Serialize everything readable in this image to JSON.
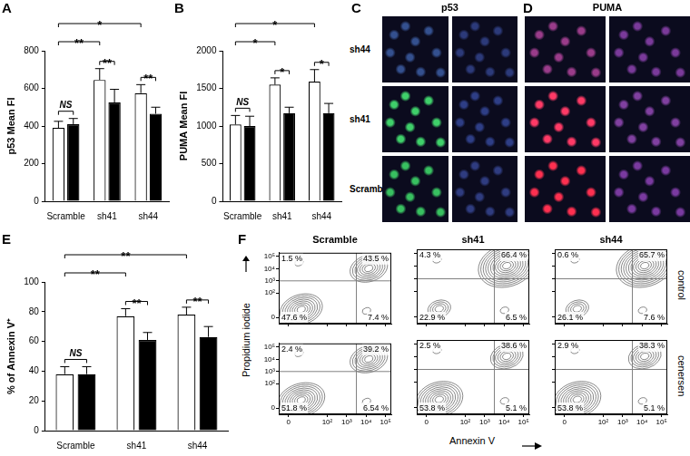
{
  "chart_data": [
    {
      "title": "A",
      "type": "bar",
      "ylabel": "p53 Mean FI",
      "categories": [
        "Scramble",
        "sh41",
        "sh44"
      ],
      "series": [
        {
          "color": "#ffffff",
          "values": [
            390,
            645,
            575
          ],
          "errors": [
            35,
            60,
            45
          ]
        },
        {
          "color": "#000000",
          "values": [
            410,
            525,
            465
          ],
          "errors": [
            30,
            70,
            35
          ]
        }
      ],
      "ylim": [
        0,
        800
      ],
      "yticks": [
        0,
        200,
        400,
        600,
        800
      ],
      "grid": false,
      "significance": [
        {
          "from": "Scramble",
          "to": "sh41",
          "label": "**"
        },
        {
          "from": "Scramble",
          "to": "sh44",
          "label": "*"
        },
        {
          "within": "Scramble",
          "label": "NS"
        },
        {
          "within": "sh41",
          "label": "**"
        },
        {
          "within": "sh44",
          "label": "**"
        }
      ]
    },
    {
      "title": "B",
      "type": "bar",
      "ylabel": "PUMA Mean FI",
      "categories": [
        "Scramble",
        "sh41",
        "sh44"
      ],
      "series": [
        {
          "color": "#ffffff",
          "values": [
            1020,
            1550,
            1590
          ],
          "errors": [
            120,
            90,
            160
          ]
        },
        {
          "color": "#000000",
          "values": [
            1000,
            1170,
            1170
          ],
          "errors": [
            130,
            80,
            130
          ]
        }
      ],
      "ylim": [
        0,
        2000
      ],
      "yticks": [
        0,
        500,
        1000,
        1500,
        2000
      ],
      "grid": false,
      "significance": [
        {
          "from": "Scramble",
          "to": "sh41",
          "label": "*"
        },
        {
          "from": "Scramble",
          "to": "sh44",
          "label": "*"
        },
        {
          "within": "Scramble",
          "label": "NS"
        },
        {
          "within": "sh41",
          "label": "*"
        },
        {
          "within": "sh44",
          "label": "*"
        }
      ]
    },
    {
      "title": "E",
      "type": "bar",
      "ylabel": "% of Annexin V⁺",
      "categories": [
        "Scramble",
        "sh41",
        "sh44"
      ],
      "series": [
        {
          "color": "#ffffff",
          "values": [
            38,
            77,
            78
          ],
          "errors": [
            5,
            5,
            5
          ]
        },
        {
          "color": "#000000",
          "values": [
            38,
            61,
            63
          ],
          "errors": [
            5,
            5,
            7
          ]
        }
      ],
      "ylim": [
        0,
        100
      ],
      "yticks": [
        0,
        20,
        40,
        60,
        80,
        100
      ],
      "grid": false,
      "significance": [
        {
          "from": "Scramble",
          "to": "sh41",
          "label": "**"
        },
        {
          "from": "Scramble",
          "to": "sh44",
          "label": "**"
        },
        {
          "within": "Scramble",
          "label": "NS"
        },
        {
          "within": "sh41",
          "label": "**"
        },
        {
          "within": "sh44",
          "label": "**"
        }
      ]
    },
    {
      "title": "F",
      "type": "contour",
      "xlabel": "Annexin V",
      "ylabel": "Propidium iodide",
      "columns": [
        "Scramble",
        "sh41",
        "sh44"
      ],
      "rows": [
        "control",
        "cenersen"
      ],
      "xlim": [
        -0.5,
        5.3
      ],
      "xticks": [
        0,
        {
          "value": 2,
          "label": "10²"
        },
        {
          "value": 3,
          "label": "10³"
        },
        {
          "value": 4,
          "label": "10⁴"
        },
        {
          "value": 5,
          "label": "10⁵"
        }
      ],
      "ylim": [
        -0.5,
        5.3
      ],
      "yticks": [
        0,
        {
          "value": 2,
          "label": "10²"
        },
        {
          "value": 3,
          "label": "10³"
        },
        {
          "value": 4,
          "label": "10⁴"
        },
        {
          "value": 5,
          "label": "10⁵"
        }
      ],
      "grid": false,
      "color": "#555555",
      "gate": {
        "x": 3.5,
        "y": 3.0
      },
      "plots": [
        [
          {
            "tick_labels": "y",
            "values": [
              1.5,
              43.5,
              47.6,
              7.4
            ],
            "value_labels": [
              "1.5 %",
              "43.5 %",
              "47.6 %",
              "7.4 %"
            ]
          },
          {
            "tick_labels": false,
            "values": [
              4.3,
              66.4,
              22.9,
              6.5
            ],
            "value_labels": [
              "4.3 %",
              "66.4 %",
              "22.9 %",
              "6.5 %"
            ]
          },
          {
            "tick_labels": false,
            "values": [
              0.6,
              65.7,
              26.1,
              7.6
            ],
            "value_labels": [
              "0.6 %",
              "65.7 %",
              "26.1 %",
              "7.6 %"
            ]
          }
        ],
        [
          {
            "tick_labels": true,
            "values": [
              2.4,
              39.2,
              51.8,
              6.54
            ],
            "value_labels": [
              "2.4 %",
              "39.2 %",
              "51.8 %",
              "6.54 %"
            ]
          },
          {
            "tick_labels": "x",
            "values": [
              2.5,
              38.6,
              53.8,
              5.1
            ],
            "value_labels": [
              "2.5 %",
              "38.6 %",
              "53.8 %",
              "5.1 %"
            ]
          },
          {
            "tick_labels": "x",
            "values": [
              2.9,
              38.3,
              53.8,
              5.1
            ],
            "value_labels": [
              "2.9 %",
              "38.3 %",
              "53.8 %",
              "5.1 %"
            ]
          }
        ]
      ]
    }
  ],
  "micrographs": [
    {
      "title": "C",
      "label": "p53",
      "rows": [
        "sh44",
        "sh41",
        "Scramble"
      ]
    },
    {
      "title": "D",
      "label": "PUMA"
    }
  ]
}
